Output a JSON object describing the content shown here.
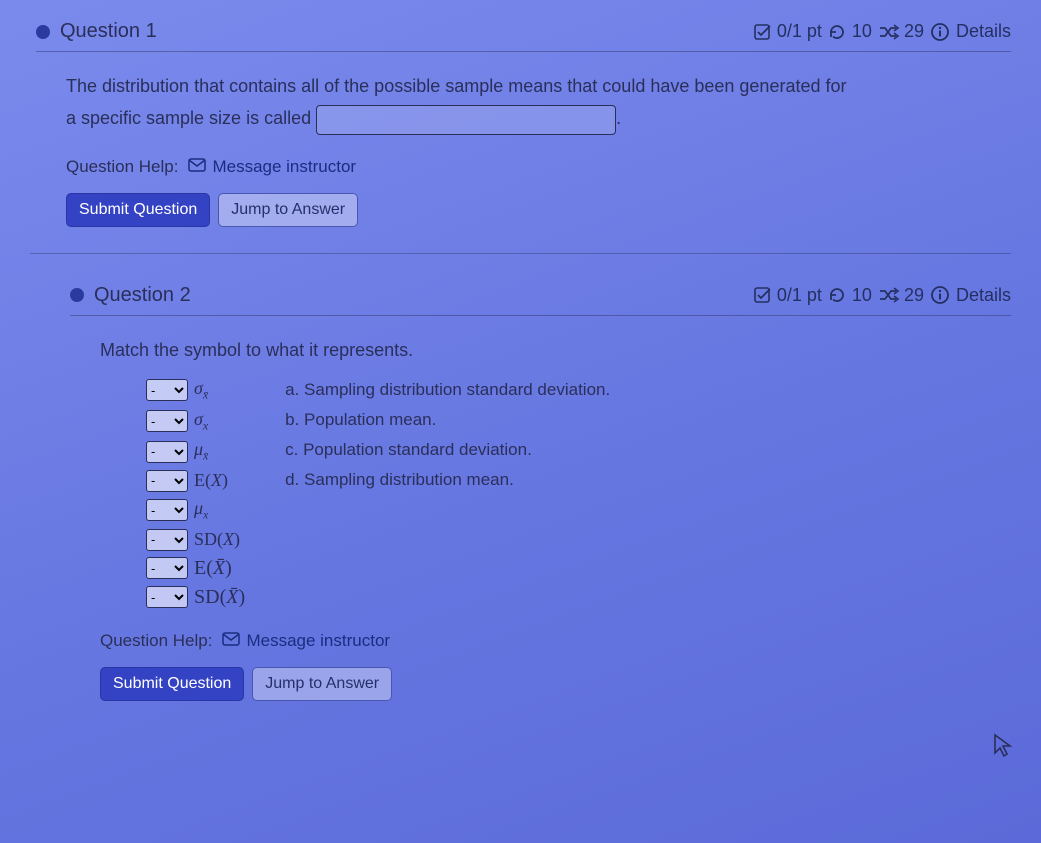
{
  "q1": {
    "title": "Question 1",
    "points": "0/1 pt",
    "retry": "10",
    "shuffle": "29",
    "details": "Details",
    "prompt_a": "The distribution that contains all of the possible sample means that could have been generated for",
    "prompt_b": "a specific sample size is called",
    "input_value": "",
    "help_label": "Question Help:",
    "msg_label": "Message instructor",
    "submit": "Submit Question",
    "jump": "Jump to Answer"
  },
  "q2": {
    "title": "Question 2",
    "points": "0/1 pt",
    "retry": "10",
    "shuffle": "29",
    "details": "Details",
    "prompt": "Match the symbol to what it represents.",
    "symbols": {
      "s0": "σ<sub>x̄</sub>",
      "s1": "σ<sub>x</sub>",
      "s2": "μ<sub>x̄</sub>",
      "s3": "E(X)",
      "s4": "μ<sub>x</sub>",
      "s5": "SD(X)",
      "s6": "E(X̄)",
      "s7": "SD(X̄)"
    },
    "options": {
      "a": "a. Sampling distribution standard deviation.",
      "b": "b. Population mean.",
      "c": "c. Population standard deviation.",
      "d": "d. Sampling distribution mean."
    },
    "help_label": "Question Help:",
    "msg_label": "Message instructor",
    "submit": "Submit Question",
    "jump": "Jump to Answer"
  },
  "select_opts": [
    "-",
    "a",
    "b",
    "c",
    "d"
  ]
}
